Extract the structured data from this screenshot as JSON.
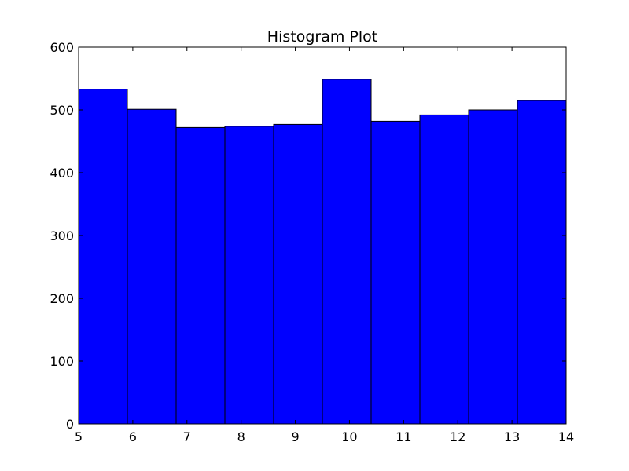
{
  "chart_data": {
    "type": "bar",
    "title": "Histogram Plot",
    "xlabel": "",
    "ylabel": "",
    "bin_edges": [
      5,
      5.9,
      6.8,
      7.7,
      8.6,
      9.5,
      10.4,
      11.3,
      12.2,
      13.1,
      14
    ],
    "values": [
      533,
      501,
      472,
      474,
      477,
      549,
      482,
      492,
      500,
      515
    ],
    "xlim": [
      5,
      14
    ],
    "ylim": [
      0,
      600
    ],
    "xticks": [
      5,
      6,
      7,
      8,
      9,
      10,
      11,
      12,
      13,
      14
    ],
    "yticks": [
      0,
      100,
      200,
      300,
      400,
      500,
      600
    ],
    "grid": false,
    "bar_color": "#0000ff",
    "edge_color": "#000000"
  }
}
